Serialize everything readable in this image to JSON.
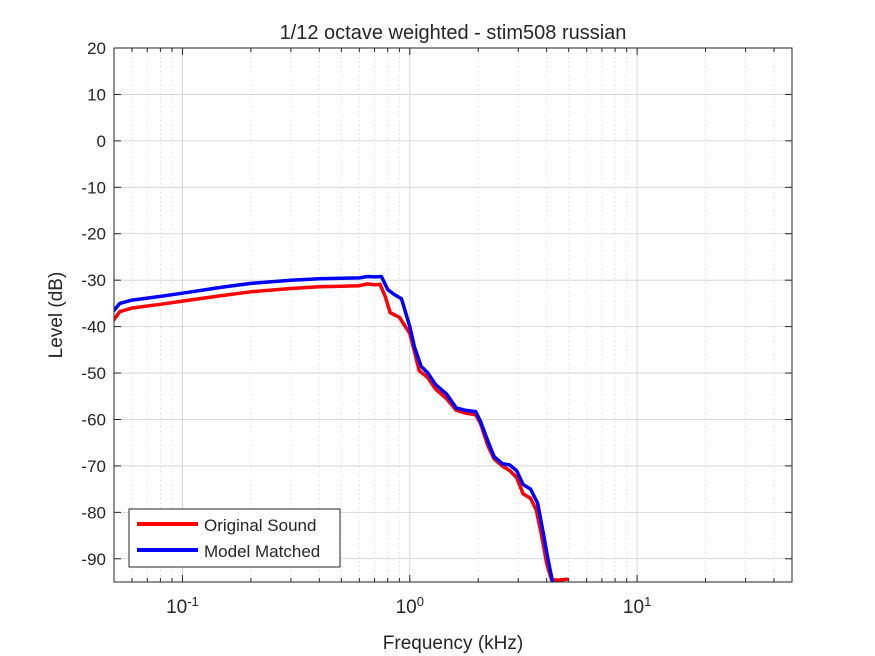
{
  "chart_data": {
    "type": "line",
    "title": "1/12 octave weighted - stim508 russian",
    "xlabel": "Frequency (kHz)",
    "ylabel": "Level (dB)",
    "xscale": "log",
    "xlim": [
      0.05,
      48
    ],
    "ylim": [
      -95,
      20
    ],
    "grid": true,
    "legend_position": "bottom-left",
    "x_ticks": [
      {
        "value": 0.1,
        "base": "10",
        "exp": "-1"
      },
      {
        "value": 1,
        "base": "10",
        "exp": "0"
      },
      {
        "value": 10,
        "base": "10",
        "exp": "1"
      }
    ],
    "y_ticks": [
      {
        "value": 20,
        "label": "20"
      },
      {
        "value": 10,
        "label": "10"
      },
      {
        "value": 0,
        "label": "0"
      },
      {
        "value": -10,
        "label": "-10"
      },
      {
        "value": -20,
        "label": "-20"
      },
      {
        "value": -30,
        "label": "-30"
      },
      {
        "value": -40,
        "label": "-40"
      },
      {
        "value": -50,
        "label": "-50"
      },
      {
        "value": -60,
        "label": "-60"
      },
      {
        "value": -70,
        "label": "-70"
      },
      {
        "value": -80,
        "label": "-80"
      },
      {
        "value": -90,
        "label": "-90"
      }
    ],
    "series": [
      {
        "name": "Original Sound",
        "color": "#ff0000",
        "points": [
          [
            0.05,
            -38.5
          ],
          [
            0.053,
            -36.8
          ],
          [
            0.06,
            -36.0
          ],
          [
            0.08,
            -35.2
          ],
          [
            0.1,
            -34.5
          ],
          [
            0.15,
            -33.3
          ],
          [
            0.2,
            -32.5
          ],
          [
            0.3,
            -31.8
          ],
          [
            0.4,
            -31.4
          ],
          [
            0.5,
            -31.3
          ],
          [
            0.6,
            -31.2
          ],
          [
            0.65,
            -30.8
          ],
          [
            0.7,
            -31.0
          ],
          [
            0.74,
            -30.9
          ],
          [
            0.78,
            -33.5
          ],
          [
            0.82,
            -37.0
          ],
          [
            0.9,
            -38.0
          ],
          [
            1.0,
            -41.5
          ],
          [
            1.05,
            -45.5
          ],
          [
            1.1,
            -49.5
          ],
          [
            1.2,
            -51.0
          ],
          [
            1.3,
            -53.5
          ],
          [
            1.45,
            -55.5
          ],
          [
            1.6,
            -58.0
          ],
          [
            1.75,
            -58.6
          ],
          [
            1.95,
            -59.0
          ],
          [
            2.05,
            -61.0
          ],
          [
            2.2,
            -65.5
          ],
          [
            2.35,
            -68.5
          ],
          [
            2.55,
            -70.0
          ],
          [
            2.75,
            -71.0
          ],
          [
            2.95,
            -72.5
          ],
          [
            3.15,
            -76.0
          ],
          [
            3.4,
            -77.0
          ],
          [
            3.6,
            -79.5
          ],
          [
            3.8,
            -85.0
          ],
          [
            4.0,
            -91.0
          ],
          [
            4.2,
            -94.5
          ],
          [
            4.5,
            -94.6
          ],
          [
            4.9,
            -94.4
          ]
        ]
      },
      {
        "name": "Model Matched",
        "color": "#0000ff",
        "points": [
          [
            0.05,
            -36.5
          ],
          [
            0.053,
            -35.0
          ],
          [
            0.06,
            -34.3
          ],
          [
            0.08,
            -33.5
          ],
          [
            0.1,
            -32.8
          ],
          [
            0.15,
            -31.5
          ],
          [
            0.2,
            -30.7
          ],
          [
            0.3,
            -30.0
          ],
          [
            0.4,
            -29.7
          ],
          [
            0.5,
            -29.6
          ],
          [
            0.6,
            -29.5
          ],
          [
            0.65,
            -29.2
          ],
          [
            0.7,
            -29.3
          ],
          [
            0.75,
            -29.2
          ],
          [
            0.8,
            -32.0
          ],
          [
            0.85,
            -33.0
          ],
          [
            0.92,
            -34.0
          ],
          [
            1.0,
            -40.0
          ],
          [
            1.05,
            -44.5
          ],
          [
            1.12,
            -48.5
          ],
          [
            1.2,
            -50.0
          ],
          [
            1.3,
            -52.5
          ],
          [
            1.45,
            -54.5
          ],
          [
            1.6,
            -57.5
          ],
          [
            1.75,
            -58.0
          ],
          [
            1.95,
            -58.3
          ],
          [
            2.05,
            -60.5
          ],
          [
            2.2,
            -64.5
          ],
          [
            2.35,
            -68.0
          ],
          [
            2.55,
            -69.5
          ],
          [
            2.75,
            -69.8
          ],
          [
            2.95,
            -71.0
          ],
          [
            3.15,
            -74.0
          ],
          [
            3.4,
            -75.0
          ],
          [
            3.65,
            -78.0
          ],
          [
            3.85,
            -84.0
          ],
          [
            4.05,
            -90.0
          ],
          [
            4.25,
            -95.0
          ]
        ]
      }
    ]
  }
}
